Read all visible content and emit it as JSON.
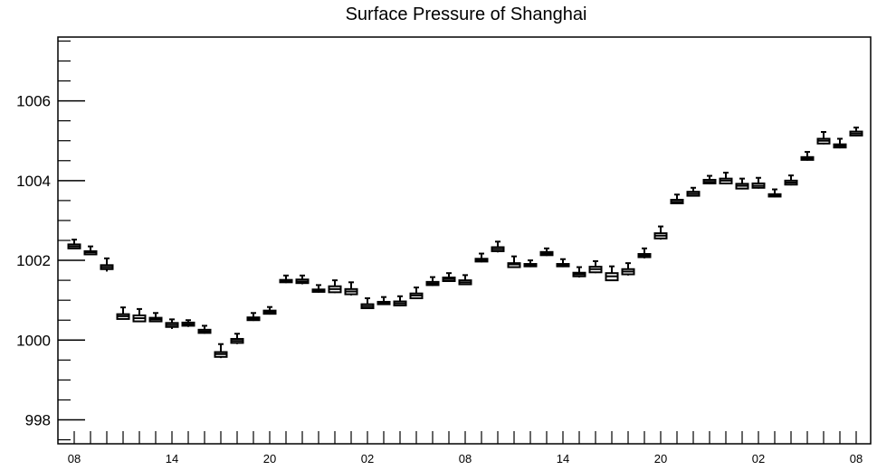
{
  "chart_data": {
    "type": "box",
    "title": "Surface Pressure of Shanghai",
    "xlabel": "",
    "ylabel": "",
    "ylim": [
      997.4,
      1007.6
    ],
    "y_ticks": [
      "998",
      "1000",
      "1002",
      "1004",
      "1006"
    ],
    "x_tick_labels": [
      "08",
      "14",
      "20",
      "02",
      "08",
      "14",
      "20",
      "02",
      "08"
    ],
    "x_tick_positions": [
      0,
      6,
      12,
      18,
      24,
      30,
      36,
      42,
      48
    ],
    "grid": false,
    "series": [
      {
        "x": [
          0,
          1,
          2,
          3,
          4,
          5,
          6,
          7,
          8,
          9,
          10,
          11,
          12,
          13,
          14,
          15,
          16,
          17,
          18,
          19,
          20,
          21,
          22,
          23,
          24,
          25,
          26,
          27,
          28,
          29,
          30,
          31,
          32,
          33,
          34,
          35,
          36,
          37,
          38,
          39,
          40,
          41,
          42,
          43,
          44,
          45,
          46,
          47,
          48
        ],
        "median": [
          1002.35,
          1002.2,
          1001.83,
          1000.6,
          1000.55,
          1000.52,
          1000.38,
          1000.4,
          1000.22,
          999.65,
          999.98,
          1000.53,
          1000.7,
          1001.48,
          1001.47,
          1001.25,
          1001.28,
          1001.22,
          1000.85,
          1000.93,
          1000.92,
          1001.12,
          1001.42,
          1001.53,
          1001.45,
          1002.0,
          1002.28,
          1001.9,
          1001.88,
          1002.17,
          1001.88,
          1001.65,
          1001.78,
          1001.6,
          1001.72,
          1002.12,
          1002.62,
          1003.47,
          1003.67,
          1003.97,
          1004.0,
          1003.87,
          1003.87,
          1003.63,
          1003.95,
          1004.55,
          1005.0,
          1004.87,
          1005.18
        ],
        "q1": [
          1002.3,
          1002.15,
          1001.78,
          1000.53,
          1000.47,
          1000.47,
          1000.33,
          1000.36,
          1000.18,
          999.58,
          999.93,
          1000.5,
          1000.66,
          1001.45,
          1001.43,
          1001.21,
          1001.2,
          1001.15,
          1000.8,
          1000.9,
          1000.87,
          1001.05,
          1001.38,
          1001.48,
          1001.4,
          1001.97,
          1002.23,
          1001.83,
          1001.85,
          1002.13,
          1001.85,
          1001.6,
          1001.7,
          1001.5,
          1001.65,
          1002.08,
          1002.55,
          1003.43,
          1003.62,
          1003.93,
          1003.93,
          1003.8,
          1003.82,
          1003.6,
          1003.9,
          1004.52,
          1004.93,
          1004.83,
          1005.13
        ],
        "q3": [
          1002.4,
          1002.23,
          1001.88,
          1000.65,
          1000.62,
          1000.56,
          1000.43,
          1000.44,
          1000.26,
          999.7,
          1000.03,
          1000.57,
          1000.74,
          1001.51,
          1001.52,
          1001.27,
          1001.35,
          1001.28,
          1000.9,
          1000.96,
          1000.97,
          1001.17,
          1001.46,
          1001.57,
          1001.5,
          1002.04,
          1002.33,
          1001.93,
          1001.91,
          1002.21,
          1001.91,
          1001.69,
          1001.84,
          1001.68,
          1001.78,
          1002.16,
          1002.68,
          1003.52,
          1003.72,
          1004.02,
          1004.05,
          1003.92,
          1003.93,
          1003.66,
          1004.0,
          1004.59,
          1005.05,
          1004.91,
          1005.23
        ],
        "whisker_high": [
          1002.52,
          1002.35,
          1002.05,
          1000.82,
          1000.78,
          1000.68,
          1000.52,
          1000.5,
          1000.36,
          999.9,
          1000.16,
          1000.68,
          1000.83,
          1001.62,
          1001.62,
          1001.38,
          1001.5,
          1001.45,
          1001.05,
          1001.08,
          1001.1,
          1001.32,
          1001.58,
          1001.68,
          1001.63,
          1002.17,
          1002.47,
          1002.1,
          1002.0,
          1002.3,
          1002.03,
          1001.83,
          1001.98,
          1001.85,
          1001.93,
          1002.3,
          1002.85,
          1003.65,
          1003.82,
          1004.12,
          1004.2,
          1004.05,
          1004.07,
          1003.78,
          1004.13,
          1004.72,
          1005.22,
          1005.05,
          1005.33
        ],
        "whisker_low": [
          1002.3,
          1002.15,
          1001.72,
          1000.53,
          1000.47,
          1000.45,
          1000.28,
          1000.33,
          1000.16,
          999.55,
          999.9,
          1000.48,
          1000.64,
          1001.43,
          1001.4,
          1001.19,
          1001.18,
          1001.12,
          1000.78,
          1000.88,
          1000.85,
          1001.03,
          1001.36,
          1001.46,
          1001.38,
          1001.95,
          1002.2,
          1001.82,
          1001.83,
          1002.11,
          1001.83,
          1001.57,
          1001.68,
          1001.48,
          1001.62,
          1002.05,
          1002.52,
          1003.41,
          1003.6,
          1003.91,
          1003.91,
          1003.78,
          1003.8,
          1003.58,
          1003.88,
          1004.5,
          1004.91,
          1004.81,
          1005.11
        ]
      }
    ]
  }
}
